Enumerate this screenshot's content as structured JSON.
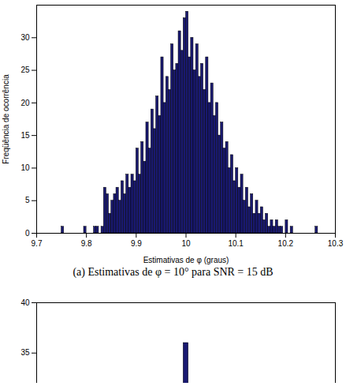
{
  "chart_data": [
    {
      "type": "histogram",
      "title": "(a) Estimativas de φ = 10° para SNR = 15 dB",
      "x_label": "Estimativas de φ (graus)",
      "y_label": "Freqüência de ocorrência",
      "bins": [
        9.75,
        9.755,
        9.76,
        9.765,
        9.77,
        9.775,
        9.78,
        9.785,
        9.79,
        9.795,
        9.8,
        9.805,
        9.81,
        9.815,
        9.82,
        9.825,
        9.83,
        9.835,
        9.84,
        9.845,
        9.85,
        9.855,
        9.86,
        9.865,
        9.87,
        9.875,
        9.88,
        9.885,
        9.89,
        9.895,
        9.9,
        9.905,
        9.91,
        9.915,
        9.92,
        9.925,
        9.93,
        9.935,
        9.94,
        9.945,
        9.95,
        9.955,
        9.96,
        9.965,
        9.97,
        9.975,
        9.98,
        9.985,
        9.99,
        9.995,
        10,
        10.005,
        10.01,
        10.015,
        10.02,
        10.025,
        10.03,
        10.035,
        10.04,
        10.045,
        10.05,
        10.055,
        10.06,
        10.065,
        10.07,
        10.075,
        10.08,
        10.085,
        10.09,
        10.095,
        10.1,
        10.105,
        10.11,
        10.115,
        10.12,
        10.125,
        10.13,
        10.135,
        10.14,
        10.145,
        10.15,
        10.155,
        10.16,
        10.165,
        10.17,
        10.175,
        10.18,
        10.185,
        10.19,
        10.195,
        10.2,
        10.205,
        10.21,
        10.215,
        10.22,
        10.225,
        10.23,
        10.235,
        10.24,
        10.245,
        10.25,
        10.255,
        10.26,
        10.265
      ],
      "values": [
        1,
        0,
        0,
        0,
        0,
        0,
        0,
        0,
        0,
        1,
        0,
        0,
        0,
        1,
        1,
        0,
        1,
        7,
        6,
        3,
        5,
        6,
        7,
        5,
        8,
        6,
        9,
        7,
        9,
        8,
        13,
        9,
        14,
        11,
        17,
        13,
        19,
        16,
        21,
        18,
        27,
        20,
        24,
        22,
        29,
        25,
        26,
        31,
        28,
        33,
        34,
        27,
        30,
        25,
        29,
        24,
        26,
        22,
        27,
        20,
        23,
        18,
        20,
        15,
        17,
        13,
        14,
        10,
        12,
        8,
        10,
        7,
        9,
        5,
        7,
        4,
        6,
        3,
        5,
        3,
        4,
        2,
        3,
        1,
        2,
        1,
        2,
        1,
        1,
        0,
        2,
        0,
        1,
        0,
        0,
        0,
        0,
        0,
        0,
        0,
        0,
        0,
        1
      ],
      "color": "#191970",
      "xlim": [
        9.7,
        10.3
      ],
      "xticks": [
        9.7,
        9.8,
        9.9,
        10,
        10.1,
        10.2,
        10.3
      ],
      "ylim": [
        0,
        35
      ],
      "yticks": [
        0,
        5,
        10,
        15,
        20,
        25,
        30
      ]
    },
    {
      "type": "histogram",
      "bins": [
        9.995,
        10.005
      ],
      "values": [
        36
      ],
      "color": "#191970",
      "xlim": [
        9.7,
        10.3
      ],
      "ylim": [
        32,
        40
      ],
      "yticks": [
        35,
        40
      ],
      "tick_labels": "y"
    }
  ]
}
